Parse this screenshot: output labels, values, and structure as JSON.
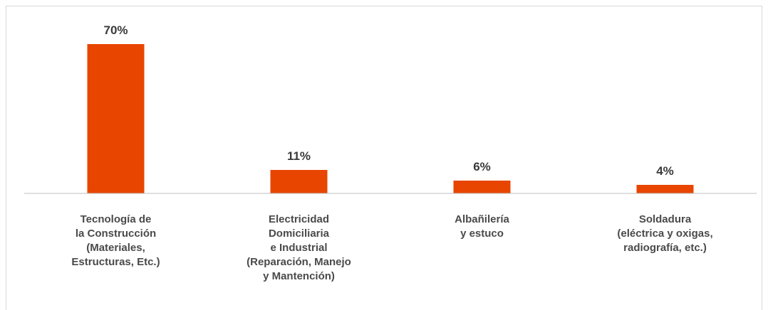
{
  "chart_data": {
    "type": "bar",
    "categories": [
      [
        "Tecnología de",
        "la Construcción",
        "(Materiales,",
        "Estructuras, Etc.)"
      ],
      [
        "Electricidad",
        "Domiciliaria",
        "e Industrial",
        "(Reparación, Manejo",
        "y Mantención)"
      ],
      [
        "Albañilería",
        "y estuco"
      ],
      [
        "Soldadura",
        "(eléctrica y oxigas,",
        "radiografía, etc.)"
      ]
    ],
    "values": [
      70,
      11,
      6,
      4
    ],
    "data_labels": [
      "70%",
      "11%",
      "6%",
      "4%"
    ],
    "ylim": [
      0,
      70
    ],
    "grid": false,
    "legend": "none",
    "bar_color": "#E84500",
    "axis_color": "#bfbfbf"
  }
}
